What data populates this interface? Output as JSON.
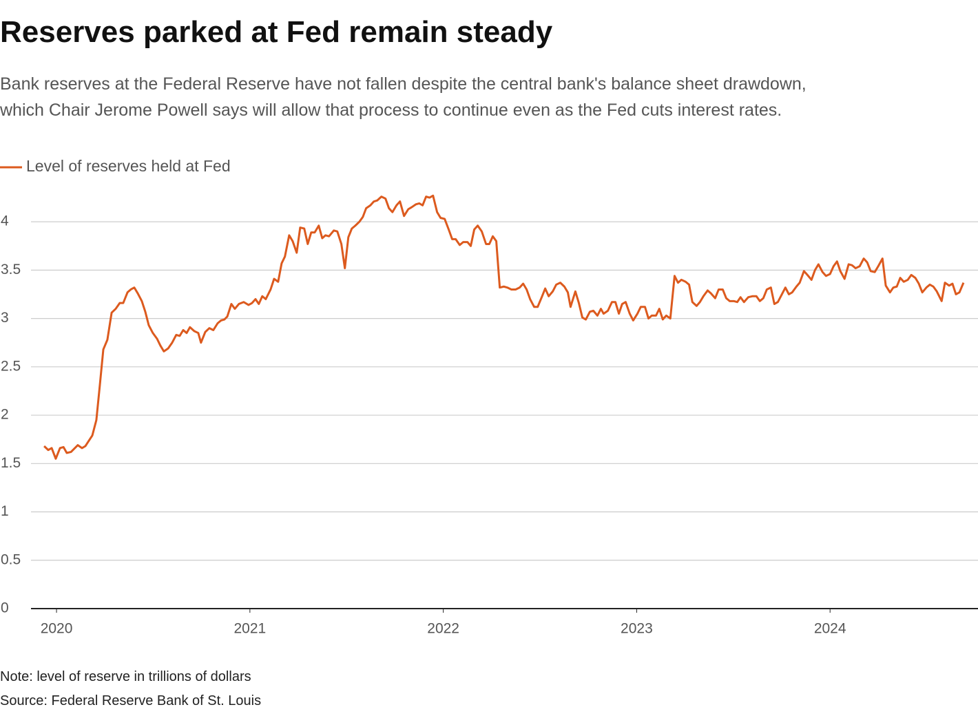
{
  "chart_data": {
    "type": "line",
    "title": "Reserves parked at Fed remain steady",
    "subtitle": [
      "Bank reserves at the Federal Reserve have not fallen despite the central bank's balance sheet drawdown,",
      "which Chair Jerome Powell says will allow that process to continue even as the Fed cuts interest rates."
    ],
    "notes": [
      "Note: level of reserve in trillions of dollars",
      "Source: Federal Reserve Bank of St. Louis"
    ],
    "x": [
      2019.936,
      2019.957,
      2019.975,
      2019.996,
      2020.018,
      2020.036,
      2020.053,
      2020.075,
      2020.11,
      2020.132,
      2020.149,
      2020.185,
      2020.206,
      2020.224,
      2020.242,
      2020.263,
      2020.285,
      2020.306,
      2020.327,
      2020.345,
      2020.367,
      2020.384,
      2020.402,
      2020.42,
      2020.441,
      2020.459,
      2020.477,
      2020.498,
      2020.52,
      2020.537,
      2020.555,
      2020.577,
      2020.598,
      2020.619,
      2020.637,
      2020.655,
      2020.673,
      2020.69,
      2020.712,
      2020.733,
      2020.747,
      2020.769,
      2020.79,
      2020.811,
      2020.833,
      2020.851,
      2020.868,
      2020.883,
      2020.904,
      2020.922,
      2020.943,
      2020.968,
      2020.993,
      2021.011,
      2021.029,
      2021.046,
      2021.064,
      2021.082,
      2021.107,
      2021.125,
      2021.146,
      2021.164,
      2021.181,
      2021.203,
      2021.221,
      2021.242,
      2021.26,
      2021.281,
      2021.299,
      2021.317,
      2021.335,
      2021.356,
      2021.374,
      2021.391,
      2021.409,
      2021.434,
      2021.452,
      2021.473,
      2021.491,
      2021.509,
      2021.527,
      2021.545,
      2021.566,
      2021.584,
      2021.601,
      2021.623,
      2021.641,
      2021.658,
      2021.68,
      2021.701,
      2021.719,
      2021.737,
      2021.758,
      2021.776,
      2021.797,
      2021.819,
      2021.836,
      2021.858,
      2021.876,
      2021.893,
      2021.911,
      2021.929,
      2021.947,
      2021.968,
      2021.986,
      2022.007,
      2022.028,
      2022.046,
      2022.064,
      2022.085,
      2022.103,
      2022.125,
      2022.142,
      2022.16,
      2022.178,
      2022.199,
      2022.221,
      2022.238,
      2022.256,
      2022.274,
      2022.292,
      2022.313,
      2022.331,
      2022.352,
      2022.374,
      2022.395,
      2022.413,
      2022.431,
      2022.449,
      2022.47,
      2022.488,
      2022.509,
      2022.527,
      2022.545,
      2022.566,
      2022.584,
      2022.605,
      2022.626,
      2022.644,
      2022.658,
      2022.683,
      2022.701,
      2022.719,
      2022.737,
      2022.758,
      2022.776,
      2022.797,
      2022.815,
      2022.829,
      2022.851,
      2022.872,
      2022.89,
      2022.908,
      2022.925,
      2022.943,
      2022.964,
      2022.982,
      2023.004,
      2023.021,
      2023.043,
      2023.061,
      2023.078,
      2023.1,
      2023.117,
      2023.135,
      2023.153,
      2023.174,
      2023.196,
      2023.214,
      2023.231,
      2023.253,
      2023.271,
      2023.288,
      2023.31,
      2023.327,
      2023.345,
      2023.367,
      2023.384,
      2023.406,
      2023.424,
      2023.445,
      2023.463,
      2023.481,
      2023.502,
      2023.52,
      2023.537,
      2023.555,
      2023.577,
      2023.598,
      2023.619,
      2023.637,
      2023.655,
      2023.673,
      2023.694,
      2023.712,
      2023.73,
      2023.751,
      2023.769,
      2023.787,
      2023.804,
      2023.826,
      2023.843,
      2023.865,
      2023.883,
      2023.904,
      2023.922,
      2023.94,
      2023.961,
      2023.979,
      2024.0,
      2024.018,
      2024.036,
      2024.053,
      2024.075,
      2024.096,
      2024.114,
      2024.132,
      2024.153,
      2024.174,
      2024.192,
      2024.21,
      2024.231,
      2024.249,
      2024.271,
      2024.288,
      2024.31,
      2024.327,
      2024.345,
      2024.363,
      2024.381,
      2024.402,
      2024.42,
      2024.441,
      2024.459,
      2024.477,
      2024.498,
      2024.516,
      2024.534,
      2024.552,
      2024.577,
      2024.594,
      2024.616,
      2024.633,
      2024.651,
      2024.669,
      2024.69
    ],
    "series": [
      {
        "name": "Level of reserves held at Fed",
        "color": "#dc5a1e",
        "values": [
          1.68,
          1.64,
          1.66,
          1.55,
          1.66,
          1.67,
          1.61,
          1.62,
          1.69,
          1.66,
          1.68,
          1.79,
          1.95,
          2.31,
          2.68,
          2.78,
          3.06,
          3.1,
          3.16,
          3.16,
          3.27,
          3.3,
          3.32,
          3.26,
          3.18,
          3.07,
          2.93,
          2.85,
          2.79,
          2.72,
          2.66,
          2.69,
          2.75,
          2.83,
          2.82,
          2.88,
          2.85,
          2.91,
          2.87,
          2.85,
          2.75,
          2.86,
          2.9,
          2.88,
          2.95,
          2.98,
          2.99,
          3.02,
          3.15,
          3.1,
          3.15,
          3.17,
          3.14,
          3.16,
          3.2,
          3.15,
          3.23,
          3.2,
          3.3,
          3.41,
          3.38,
          3.57,
          3.64,
          3.86,
          3.8,
          3.68,
          3.94,
          3.93,
          3.77,
          3.89,
          3.89,
          3.96,
          3.83,
          3.86,
          3.85,
          3.91,
          3.9,
          3.77,
          3.52,
          3.84,
          3.93,
          3.96,
          4.0,
          4.05,
          4.14,
          4.17,
          4.21,
          4.22,
          4.26,
          4.24,
          4.14,
          4.1,
          4.17,
          4.21,
          4.06,
          4.13,
          4.15,
          4.18,
          4.19,
          4.17,
          4.26,
          4.25,
          4.27,
          4.1,
          4.04,
          4.03,
          3.92,
          3.82,
          3.82,
          3.76,
          3.79,
          3.79,
          3.75,
          3.92,
          3.96,
          3.9,
          3.77,
          3.77,
          3.85,
          3.8,
          3.32,
          3.33,
          3.32,
          3.3,
          3.3,
          3.32,
          3.36,
          3.3,
          3.2,
          3.12,
          3.12,
          3.22,
          3.31,
          3.23,
          3.28,
          3.35,
          3.37,
          3.33,
          3.27,
          3.12,
          3.28,
          3.16,
          3.01,
          2.99,
          3.07,
          3.08,
          3.03,
          3.1,
          3.05,
          3.08,
          3.17,
          3.17,
          3.05,
          3.15,
          3.17,
          3.05,
          2.98,
          3.05,
          3.12,
          3.12,
          3.0,
          3.03,
          3.03,
          3.1,
          2.99,
          3.03,
          3.0,
          3.44,
          3.37,
          3.4,
          3.38,
          3.35,
          3.17,
          3.13,
          3.17,
          3.23,
          3.29,
          3.26,
          3.21,
          3.3,
          3.3,
          3.21,
          3.18,
          3.18,
          3.17,
          3.22,
          3.17,
          3.22,
          3.23,
          3.23,
          3.18,
          3.21,
          3.3,
          3.32,
          3.15,
          3.17,
          3.25,
          3.32,
          3.25,
          3.27,
          3.33,
          3.37,
          3.49,
          3.45,
          3.4,
          3.5,
          3.56,
          3.48,
          3.44,
          3.46,
          3.54,
          3.59,
          3.49,
          3.41,
          3.56,
          3.55,
          3.52,
          3.54,
          3.62,
          3.58,
          3.49,
          3.48,
          3.54,
          3.62,
          3.34,
          3.27,
          3.32,
          3.33,
          3.42,
          3.38,
          3.4,
          3.45,
          3.42,
          3.36,
          3.27,
          3.32,
          3.35,
          3.33,
          3.28,
          3.18,
          3.37,
          3.34,
          3.36,
          3.25,
          3.27,
          3.37
        ]
      }
    ],
    "xlim": [
      2019.868,
      2024.765
    ],
    "xticks": [
      2020,
      2021,
      2022,
      2023,
      2024
    ],
    "ylim": [
      0,
      4.3
    ],
    "yticks": [
      0,
      0.5,
      1,
      1.5,
      2,
      2.5,
      3,
      3.5,
      4
    ],
    "grid": true
  }
}
